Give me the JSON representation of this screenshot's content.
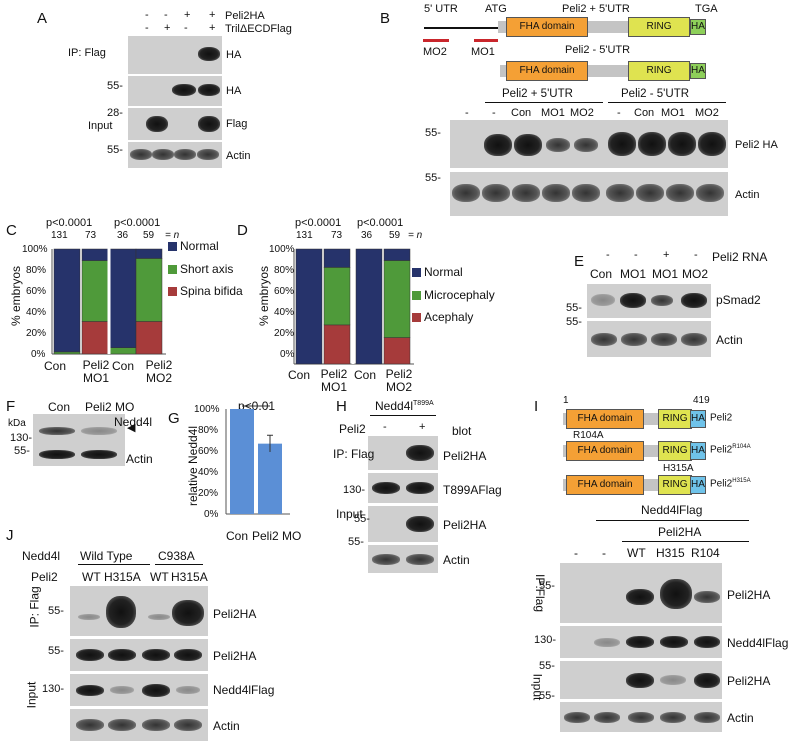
{
  "panels": {
    "A": {
      "label": "A",
      "row_peli2ha": {
        "name": "Peli2HA",
        "signs": [
          "-",
          "-",
          "+",
          "+"
        ]
      },
      "row_tril": {
        "name": "TrilΔECDFlag",
        "signs": [
          "-",
          "+",
          "-",
          "+"
        ]
      },
      "ip_label": "IP: Flag",
      "input_label": "Input",
      "mw": [
        "55-",
        "28-",
        "55-"
      ],
      "blots": [
        "HA",
        "HA",
        "Flag",
        "Actin"
      ]
    },
    "B": {
      "label": "B",
      "utr": "5' UTR",
      "atg": "ATG",
      "tga": "TGA",
      "construct1": "Peli2 + 5'UTR",
      "construct2": "Peli2 - 5'UTR",
      "fha": "FHA domain",
      "ring": "RING",
      "ha": "HA",
      "mo2": "MO2",
      "mo1": "MO1",
      "group1": "Peli2 + 5'UTR",
      "group2": "Peli2 - 5'UTR",
      "lanes": [
        "-",
        "-",
        "Con",
        "MO1",
        "MO2",
        "-",
        "Con",
        "MO1",
        "MO2"
      ],
      "mw": [
        "55-",
        "55-"
      ],
      "blots": [
        "Peli2 HA",
        "Actin"
      ]
    },
    "C": {
      "label": "C",
      "pvals": [
        "p<0.0001",
        "p<0.0001"
      ],
      "n_values": [
        "131",
        "73",
        "36",
        "59"
      ],
      "n_suffix": "= n",
      "ylabel": "% embryos",
      "yticks": [
        "100%",
        "80%",
        "60%",
        "40%",
        "20%",
        "0%"
      ],
      "xlabels": [
        "Con",
        "Peli2 MO1",
        "Con",
        "Peli2 MO2"
      ],
      "legend": [
        "Normal",
        "Short axis",
        "Spina bifida"
      ]
    },
    "D": {
      "label": "D",
      "pvals": [
        "p<0.0001",
        "p<0.0001"
      ],
      "n_values": [
        "131",
        "73",
        "36",
        "59"
      ],
      "n_suffix": "= n",
      "ylabel": "% embryos",
      "yticks": [
        "100%",
        "80%",
        "60%",
        "40%",
        "20%",
        "0%"
      ],
      "xlabels": [
        "Con",
        "Peli2 MO1",
        "Con",
        "Peli2 MO2"
      ],
      "legend": [
        "Normal",
        "Microcephaly",
        "Acephaly"
      ]
    },
    "E": {
      "label": "E",
      "rna_signs": [
        "-",
        "-",
        "+",
        "-"
      ],
      "rna_label": "Peli2 RNA",
      "lanes": [
        "Con",
        "MO1",
        "MO1",
        "MO2"
      ],
      "mw": [
        "55-",
        "55-"
      ],
      "blots": [
        "pSmad2",
        "Actin"
      ]
    },
    "F": {
      "label": "F",
      "kda": "kDa",
      "lanes": [
        "Con",
        "Peli2 MO"
      ],
      "mw": [
        "130-",
        "55-"
      ],
      "blots": [
        "Nedd4l",
        "Actin"
      ]
    },
    "G": {
      "label": "G",
      "pval": "p<0.01",
      "ylabel": "relative Nedd4l",
      "yticks": [
        "100%",
        "80%",
        "60%",
        "40%",
        "20%",
        "0%"
      ],
      "xlabels": [
        "Con",
        "Peli2 MO"
      ]
    },
    "H": {
      "label": "H",
      "header": "Nedd4l",
      "header_sup": "T899A",
      "peli2": "Peli2",
      "signs": [
        "-",
        "+"
      ],
      "blot": "blot",
      "ip_label": "IP: Flag",
      "input_label": "Input",
      "mw": [
        "130-",
        "55-",
        "55-"
      ],
      "blots": [
        "Peli2HA",
        "T899AFlag",
        "Peli2HA",
        "Actin"
      ]
    },
    "I": {
      "label": "I",
      "start": "1",
      "end": "419",
      "fha": "FHA domain",
      "ring": "RING",
      "ha": "HA",
      "construct_names": [
        "Peli2",
        "Peli2",
        "Peli2"
      ],
      "construct_sups": [
        "",
        "R104A",
        "H315A"
      ],
      "mut1": "R104A",
      "mut2": "H315A",
      "nedd_header": "Nedd4lFlag",
      "peli_header": "Peli2HA",
      "lanes": [
        "-",
        "-",
        "WT",
        "H315",
        "R104"
      ],
      "ip_label": "IP:Flag",
      "input_label": "Input",
      "mw": [
        "55-",
        "130-",
        "55-",
        "55-"
      ],
      "blots": [
        "Peli2HA",
        "Nedd4lFlag",
        "Peli2HA",
        "Actin"
      ]
    },
    "J": {
      "label": "J",
      "nedd_label": "Nedd4l",
      "groups": [
        "Wild Type",
        "C938A"
      ],
      "peli_label": "Peli2",
      "lanes": [
        "WT",
        "H315A",
        "WT",
        "H315A"
      ],
      "ip_label": "IP: Flag",
      "input_label": "Input",
      "mw": [
        "55-",
        "55-",
        "130-"
      ],
      "blots": [
        "Peli2HA",
        "Peli2HA",
        "Nedd4lFlag",
        "Actin"
      ]
    }
  },
  "chart_data": [
    {
      "type": "bar",
      "title": "",
      "ylabel": "% embryos",
      "ylim": [
        0,
        100
      ],
      "categories": [
        "Con",
        "Peli2 MO1",
        "Con",
        "Peli2 MO2"
      ],
      "series": [
        {
          "name": "Spina bifida",
          "values": [
            0,
            31,
            0,
            31
          ]
        },
        {
          "name": "Short axis",
          "values": [
            2,
            58,
            6,
            60
          ]
        },
        {
          "name": "Normal",
          "values": [
            98,
            11,
            94,
            9
          ]
        }
      ]
    },
    {
      "type": "bar",
      "title": "",
      "ylabel": "% embryos",
      "ylim": [
        0,
        100
      ],
      "categories": [
        "Con",
        "Peli2 MO1",
        "Con",
        "Peli2 MO2"
      ],
      "series": [
        {
          "name": "Acephaly",
          "values": [
            0,
            34,
            0,
            23
          ]
        },
        {
          "name": "Microcephaly",
          "values": [
            0,
            50,
            0,
            67
          ]
        },
        {
          "name": "Normal",
          "values": [
            100,
            16,
            100,
            10
          ]
        }
      ]
    },
    {
      "type": "bar",
      "title": "",
      "ylabel": "relative Nedd4l",
      "ylim": [
        0,
        100
      ],
      "categories": [
        "Con",
        "Peli2 MO"
      ],
      "values": [
        100,
        67
      ],
      "error": [
        0,
        8
      ]
    }
  ],
  "colors": {
    "normal": "#26336b",
    "green": "#4f9a3a",
    "red": "#a63b3b",
    "gbar": "#5b8fd6"
  }
}
